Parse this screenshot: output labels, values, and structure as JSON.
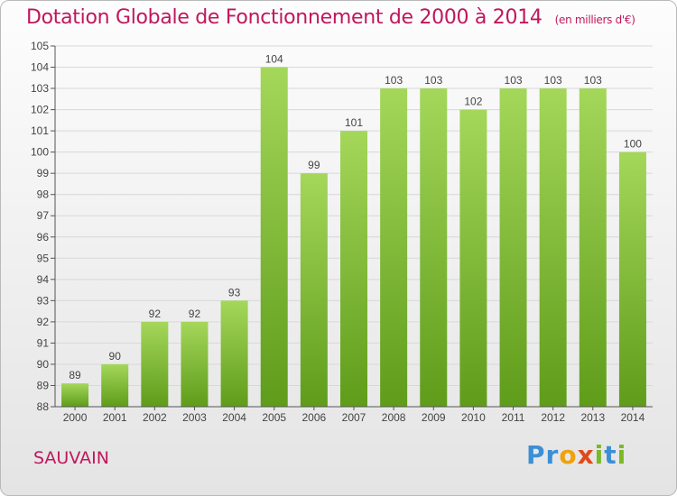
{
  "header": {
    "title": "Dotation Globale de Fonctionnement de 2000 à 2014",
    "subtitle": "(en milliers d'€)"
  },
  "footer": {
    "city": "SAUVAIN",
    "logo_text": "Proxiti",
    "logo_letters": [
      {
        "ch": "P",
        "color": "#3b8fd6"
      },
      {
        "ch": "r",
        "color": "#3b8fd6"
      },
      {
        "ch": "o",
        "color": "#f0a20b"
      },
      {
        "ch": "x",
        "color": "#e04a1a"
      },
      {
        "ch": "i",
        "color": "#7bb928"
      },
      {
        "ch": "t",
        "color": "#3b8fd6"
      },
      {
        "ch": "i",
        "color": "#7bb928"
      }
    ]
  },
  "colors": {
    "bar_top": "#a4d75a",
    "bar_bottom": "#5f9c1a",
    "accent": "#c0175d",
    "axis": "#555555",
    "grid": "#d8d8d8"
  },
  "chart_data": {
    "type": "bar",
    "categories": [
      "2000",
      "2001",
      "2002",
      "2003",
      "2004",
      "2005",
      "2006",
      "2007",
      "2008",
      "2009",
      "2010",
      "2011",
      "2012",
      "2013",
      "2014"
    ],
    "values": [
      89,
      90,
      92,
      92,
      93,
      104,
      99,
      101,
      103,
      103,
      102,
      103,
      103,
      103,
      100
    ],
    "bar_values": [
      89.1,
      90.0,
      92.0,
      92.0,
      93.0,
      104.0,
      99.0,
      101.0,
      103.0,
      103.0,
      102.0,
      103.0,
      103.0,
      103.0,
      100.0
    ],
    "y_ticks": [
      {
        "value": 88,
        "label": "88"
      },
      {
        "value": 89,
        "label": "89"
      },
      {
        "value": 90,
        "label": "90"
      },
      {
        "value": 91,
        "label": "91"
      },
      {
        "value": 92,
        "label": "92"
      },
      {
        "value": 93,
        "label": "93"
      },
      {
        "value": 94,
        "label": "94"
      },
      {
        "value": 95,
        "label": "95"
      },
      {
        "value": 96,
        "label": "96"
      },
      {
        "value": 97,
        "label": "97"
      },
      {
        "value": 98,
        "label": "98"
      },
      {
        "value": 99,
        "label": "99"
      },
      {
        "value": 100,
        "label": "100"
      },
      {
        "value": 101,
        "label": "101"
      },
      {
        "value": 102,
        "label": "102"
      },
      {
        "value": 103,
        "label": "103"
      },
      {
        "value": 104,
        "label": "104"
      },
      {
        "value": 105,
        "label": "105"
      }
    ],
    "title": "Dotation Globale de Fonctionnement de 2000 à 2014",
    "xlabel": "",
    "ylabel": "",
    "ylim": [
      88,
      105
    ],
    "grid": true,
    "legend": "none"
  }
}
